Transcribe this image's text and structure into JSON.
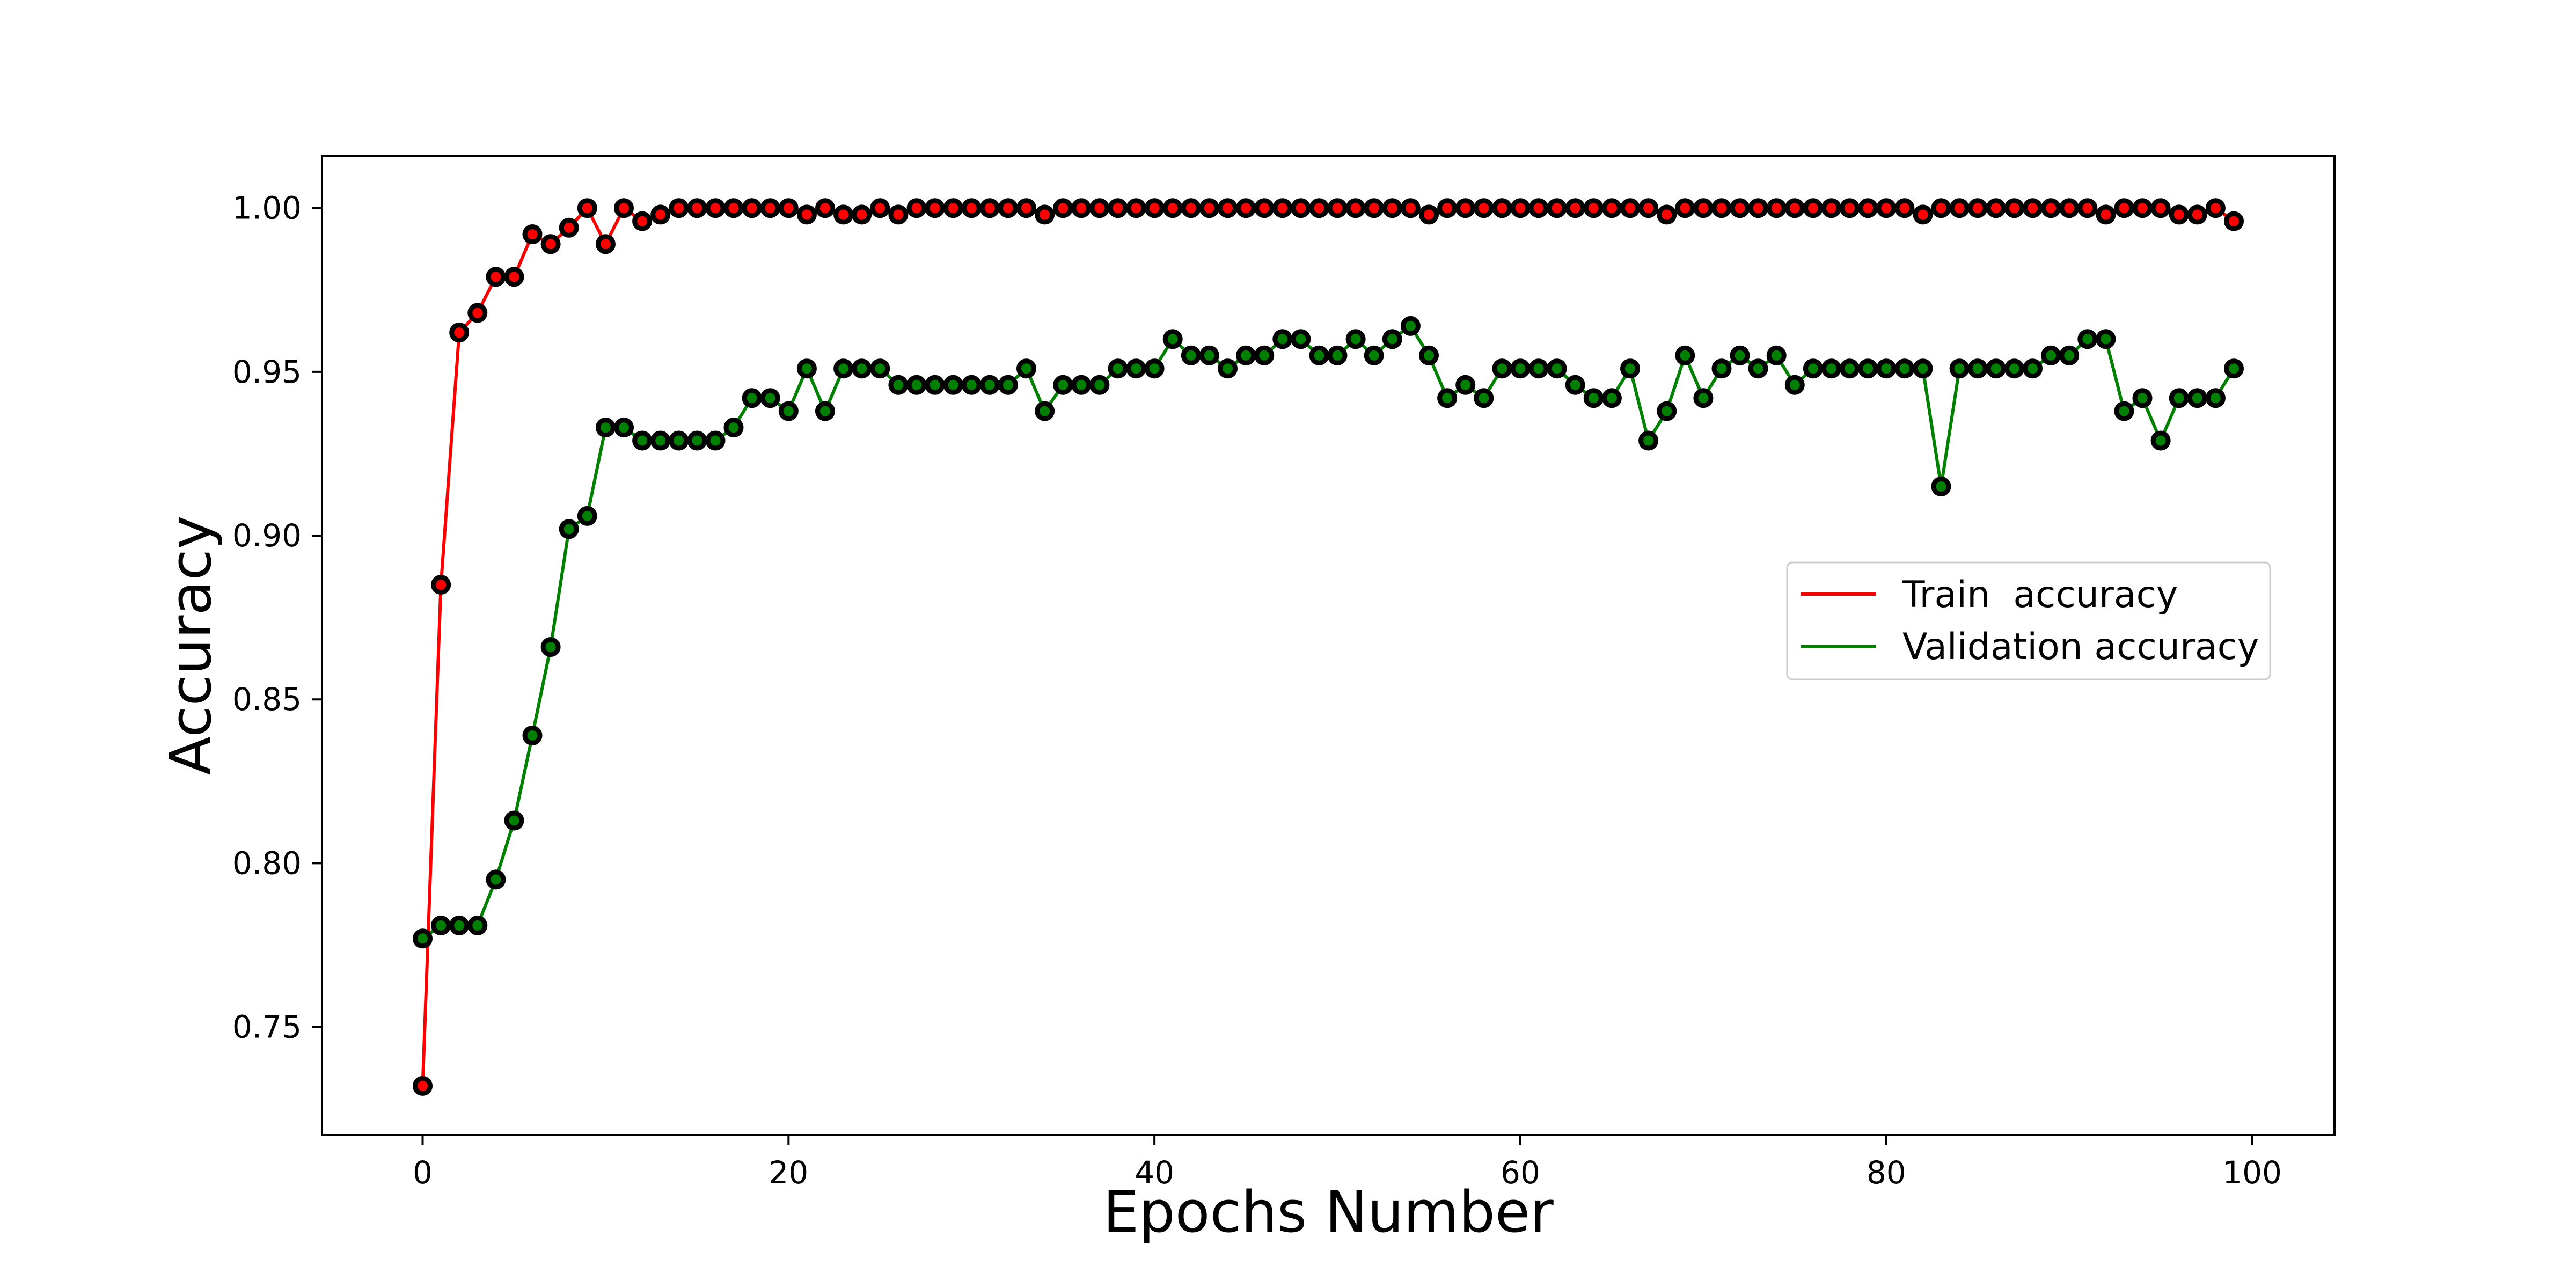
{
  "chart_data": {
    "type": "line",
    "title": "",
    "xlabel": "Epochs Number",
    "ylabel": "Accuracy",
    "xlim": [
      -5.5,
      104.5
    ],
    "ylim": [
      0.717,
      1.016
    ],
    "xticks": [
      0,
      20,
      40,
      60,
      80,
      100
    ],
    "xtick_labels": [
      "0",
      "20",
      "40",
      "60",
      "80",
      "100"
    ],
    "yticks": [
      0.75,
      0.8,
      0.85,
      0.9,
      0.95,
      1.0
    ],
    "ytick_labels": [
      "0.75",
      "0.80",
      "0.85",
      "0.90",
      "0.95",
      "1.00"
    ],
    "grid": false,
    "legend_position": "center-right",
    "x": [
      0,
      1,
      2,
      3,
      4,
      5,
      6,
      7,
      8,
      9,
      10,
      11,
      12,
      13,
      14,
      15,
      16,
      17,
      18,
      19,
      20,
      21,
      22,
      23,
      24,
      25,
      26,
      27,
      28,
      29,
      30,
      31,
      32,
      33,
      34,
      35,
      36,
      37,
      38,
      39,
      40,
      41,
      42,
      43,
      44,
      45,
      46,
      47,
      48,
      49,
      50,
      51,
      52,
      53,
      54,
      55,
      56,
      57,
      58,
      59,
      60,
      61,
      62,
      63,
      64,
      65,
      66,
      67,
      68,
      69,
      70,
      71,
      72,
      73,
      74,
      75,
      76,
      77,
      78,
      79,
      80,
      81,
      82,
      83,
      84,
      85,
      86,
      87,
      88,
      89,
      90,
      91,
      92,
      93,
      94,
      95,
      96,
      97,
      98,
      99
    ],
    "series": [
      {
        "name": "Train  accuracy",
        "color": "#ff0000",
        "values": [
          0.732,
          0.885,
          0.962,
          0.968,
          0.979,
          0.979,
          0.992,
          0.989,
          0.994,
          1.0,
          0.989,
          1.0,
          0.996,
          0.998,
          1.0,
          1.0,
          1.0,
          1.0,
          1.0,
          1.0,
          1.0,
          0.998,
          1.0,
          0.998,
          0.998,
          1.0,
          0.998,
          1.0,
          1.0,
          1.0,
          1.0,
          1.0,
          1.0,
          1.0,
          0.998,
          1.0,
          1.0,
          1.0,
          1.0,
          1.0,
          1.0,
          1.0,
          1.0,
          1.0,
          1.0,
          1.0,
          1.0,
          1.0,
          1.0,
          1.0,
          1.0,
          1.0,
          1.0,
          1.0,
          1.0,
          0.998,
          1.0,
          1.0,
          1.0,
          1.0,
          1.0,
          1.0,
          1.0,
          1.0,
          1.0,
          1.0,
          1.0,
          1.0,
          0.998,
          1.0,
          1.0,
          1.0,
          1.0,
          1.0,
          1.0,
          1.0,
          1.0,
          1.0,
          1.0,
          1.0,
          1.0,
          1.0,
          0.998,
          1.0,
          1.0,
          1.0,
          1.0,
          1.0,
          1.0,
          1.0,
          1.0,
          1.0,
          0.998,
          1.0,
          1.0,
          1.0,
          0.998,
          0.998,
          1.0,
          0.996
        ]
      },
      {
        "name": "Validation accuracy",
        "color": "#008000",
        "values": [
          0.777,
          0.781,
          0.781,
          0.781,
          0.795,
          0.813,
          0.839,
          0.866,
          0.902,
          0.906,
          0.933,
          0.933,
          0.929,
          0.929,
          0.929,
          0.929,
          0.929,
          0.933,
          0.942,
          0.942,
          0.938,
          0.951,
          0.938,
          0.951,
          0.951,
          0.951,
          0.946,
          0.946,
          0.946,
          0.946,
          0.946,
          0.946,
          0.946,
          0.951,
          0.938,
          0.946,
          0.946,
          0.946,
          0.951,
          0.951,
          0.951,
          0.96,
          0.955,
          0.955,
          0.951,
          0.955,
          0.955,
          0.96,
          0.96,
          0.955,
          0.955,
          0.96,
          0.955,
          0.96,
          0.964,
          0.955,
          0.942,
          0.946,
          0.942,
          0.951,
          0.951,
          0.951,
          0.951,
          0.946,
          0.942,
          0.942,
          0.951,
          0.929,
          0.938,
          0.955,
          0.942,
          0.951,
          0.955,
          0.951,
          0.955,
          0.946,
          0.951,
          0.951,
          0.951,
          0.951,
          0.951,
          0.951,
          0.951,
          0.915,
          0.951,
          0.951,
          0.951,
          0.951,
          0.951,
          0.955,
          0.955,
          0.96,
          0.96,
          0.938,
          0.942,
          0.929,
          0.942,
          0.942,
          0.942,
          0.951
        ]
      }
    ]
  }
}
